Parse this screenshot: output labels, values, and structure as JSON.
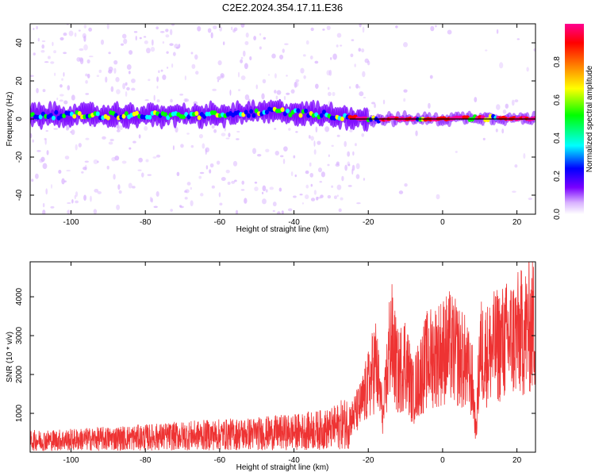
{
  "title": "C2E2.2024.354.17.11.E36",
  "chart_data": [
    {
      "type": "heatmap",
      "xlabel": "Height of straight line (km)",
      "ylabel": "Frequency (Hz)",
      "xlim": [
        -111,
        25
      ],
      "ylim": [
        -50,
        50
      ],
      "xticks": [
        -100,
        -80,
        -60,
        -40,
        -20,
        0,
        20
      ],
      "yticks": [
        -40,
        -20,
        0,
        20,
        40
      ],
      "colorbar": {
        "label": "Normalized spectral amplitude",
        "range": [
          0,
          1
        ],
        "ticks": [
          "0.0",
          "0.2",
          "0.4",
          "0.6",
          "0.8"
        ],
        "colormap": [
          "#ffffff",
          "#d9b3ff",
          "#7a00ff",
          "#0000ff",
          "#00ffff",
          "#00ff00",
          "#ffff00",
          "#ff8000",
          "#ff0000",
          "#ff0090"
        ]
      },
      "ridge": {
        "center_hz": [
          [
            -111,
            2
          ],
          [
            -60,
            2
          ],
          [
            -45,
            4
          ],
          [
            -30,
            2
          ],
          [
            -20,
            0
          ],
          [
            -10,
            0
          ],
          [
            0,
            0
          ],
          [
            10,
            1
          ],
          [
            25,
            0
          ]
        ],
        "strong_segments_km": [
          [
            -25,
            -20
          ],
          [
            -17,
            -7
          ],
          [
            -5,
            7
          ],
          [
            9,
            11
          ],
          [
            15,
            25
          ]
        ]
      },
      "grid": false
    },
    {
      "type": "line",
      "xlabel": "Height of straight line (km)",
      "ylabel": "SNR (10 * v/v)",
      "xlim": [
        -111,
        25
      ],
      "ylim": [
        0,
        4900
      ],
      "xticks": [
        -100,
        -80,
        -60,
        -40,
        -20,
        0,
        20
      ],
      "yticks": [
        1000,
        2000,
        3000,
        4000
      ],
      "color": "#ee3333",
      "x": [
        -111,
        -100,
        -90,
        -80,
        -70,
        -60,
        -50,
        -40,
        -30,
        -25,
        -22,
        -20,
        -18,
        -16,
        -14,
        -12,
        -10,
        -8,
        -6,
        -4,
        -2,
        0,
        2,
        4,
        6,
        8,
        9,
        10,
        12,
        14,
        16,
        18,
        20,
        22,
        25
      ],
      "y": [
        300,
        320,
        350,
        380,
        420,
        450,
        480,
        520,
        600,
        800,
        1200,
        1700,
        2300,
        900,
        3000,
        2000,
        2400,
        1500,
        2000,
        2400,
        2500,
        2600,
        2700,
        2500,
        2300,
        1800,
        500,
        2600,
        2500,
        2700,
        2800,
        2900,
        3000,
        3100,
        3300
      ],
      "grid": false
    }
  ]
}
